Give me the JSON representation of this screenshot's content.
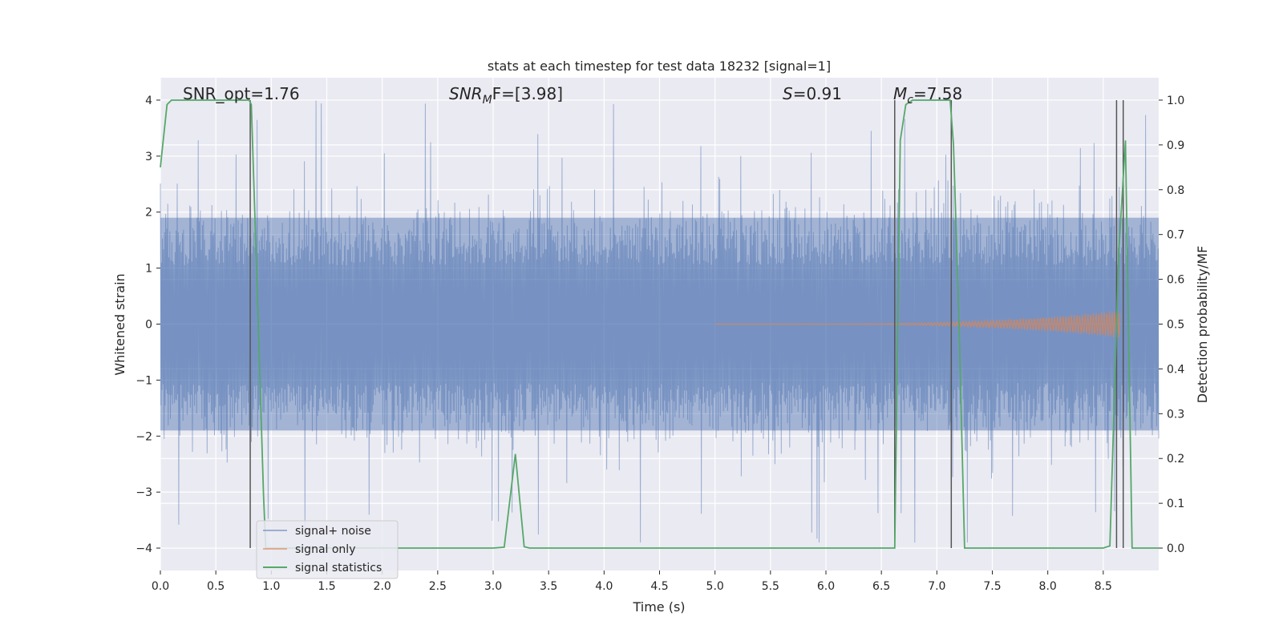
{
  "chart_data": {
    "type": "line",
    "title": "stats at each timestep for test data 18232 [signal=1]",
    "xlabel": "Time (s)",
    "ylabel": "Whitened strain",
    "ylabel_right": "Detection probability/MF",
    "xlim": [
      0.0,
      9.0
    ],
    "ylim": [
      -4.4,
      4.4
    ],
    "ylim_right": [
      -0.05,
      1.05
    ],
    "x_ticks": [
      "0.0",
      "0.5",
      "1.0",
      "1.5",
      "2.0",
      "2.5",
      "3.0",
      "3.5",
      "4.0",
      "4.5",
      "5.0",
      "5.5",
      "6.0",
      "6.5",
      "7.0",
      "7.5",
      "8.0",
      "8.5"
    ],
    "x_tick_values": [
      0.0,
      0.5,
      1.0,
      1.5,
      2.0,
      2.5,
      3.0,
      3.5,
      4.0,
      4.5,
      5.0,
      5.5,
      6.0,
      6.5,
      7.0,
      7.5,
      8.0,
      8.5
    ],
    "y_ticks": [
      "−4",
      "−3",
      "−2",
      "−1",
      "0",
      "1",
      "2",
      "3",
      "4"
    ],
    "y_tick_values": [
      -4,
      -3,
      -2,
      -1,
      0,
      1,
      2,
      3,
      4
    ],
    "y_ticks_right": [
      "0.0",
      "0.1",
      "0.2",
      "0.3",
      "0.4",
      "0.5",
      "0.6",
      "0.7",
      "0.8",
      "0.9",
      "1.0"
    ],
    "y_tick_values_right": [
      0.0,
      0.1,
      0.2,
      0.3,
      0.4,
      0.5,
      0.6,
      0.7,
      0.8,
      0.9,
      1.0
    ],
    "grid": true,
    "legend_position": "bottom-left",
    "annotations": [
      {
        "text": "SNR_opt=1.76",
        "x": 0.2,
        "y": 4.1
      },
      {
        "text_main": "SNR",
        "text_sub": "M",
        "text_rest": "F=[3.98]",
        "x": 2.6,
        "y": 4.1
      },
      {
        "text_main": "S",
        "text_rest": "=0.91",
        "x": 5.6,
        "y": 4.1
      },
      {
        "text_main": "M",
        "text_sub": "c",
        "text_rest": "=7.58",
        "x": 6.6,
        "y": 4.1
      }
    ],
    "series": [
      {
        "name": "signal+ noise",
        "color": "#4c72b0",
        "kind": "noise",
        "typical_band": [
          -1.9,
          1.9
        ],
        "peak_range": [
          -3.9,
          4.0
        ]
      },
      {
        "name": "signal only",
        "color": "#dd8452",
        "kind": "chirp",
        "x_start": 5.0,
        "x_end": 8.65,
        "max_amplitude": 0.25
      },
      {
        "name": "signal statistics",
        "color": "#55a868",
        "axis": "right",
        "x": [
          0.0,
          0.06,
          0.1,
          0.2,
          0.3,
          0.4,
          0.5,
          0.6,
          0.7,
          0.8,
          0.82,
          0.87,
          0.93,
          0.95,
          1.0,
          1.5,
          2.0,
          2.5,
          3.0,
          3.1,
          3.2,
          3.28,
          3.33,
          4.0,
          5.0,
          6.0,
          6.62,
          6.67,
          6.72,
          6.78,
          6.9,
          7.0,
          7.12,
          7.15,
          7.2,
          7.25,
          7.5,
          8.0,
          8.5,
          8.56,
          8.64,
          8.7,
          8.76,
          8.8,
          9.0
        ],
        "values": [
          0.85,
          0.99,
          1.0,
          1.0,
          1.0,
          1.0,
          1.0,
          1.0,
          1.0,
          1.0,
          0.99,
          0.6,
          0.12,
          0.0,
          0.0,
          0.0,
          0.0,
          0.0,
          0.0,
          0.002,
          0.21,
          0.003,
          0.0,
          0.0,
          0.0,
          0.0,
          0.0,
          0.91,
          0.99,
          1.0,
          1.0,
          1.0,
          1.0,
          0.9,
          0.5,
          0.0,
          0.0,
          0.0,
          0.0,
          0.005,
          0.66,
          0.91,
          0.0,
          0.0,
          0.0
        ]
      }
    ],
    "vlines": {
      "color": "#555555",
      "positions": [
        0.81,
        6.62,
        7.13,
        8.62,
        8.68
      ]
    }
  }
}
